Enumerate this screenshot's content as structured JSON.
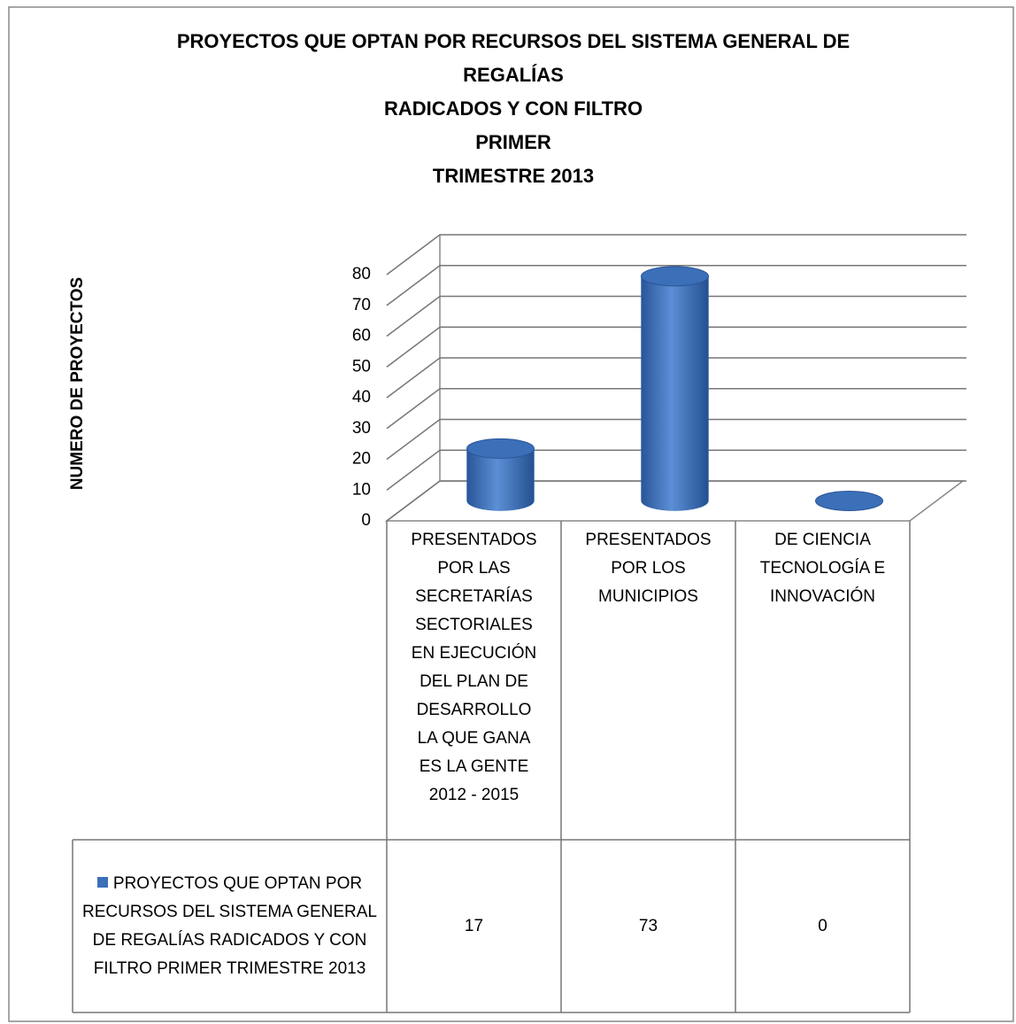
{
  "chart_data": {
    "type": "bar3d",
    "title": [
      "PROYECTOS QUE OPTAN POR RECURSOS DEL SISTEMA GENERAL DE",
      "REGALÍAS",
      "RADICADOS Y CON FILTRO",
      "PRIMER",
      "TRIMESTRE 2013"
    ],
    "ylabel": "NUMERO DE PROYECTOS",
    "categories": [
      "PRESENTADOS POR LAS SECRETARÍAS SECTORIALES EN EJECUCIÓN DEL PLAN DE DESARROLLO LA QUE GANA ES LA GENTE 2012 - 2015",
      "PRESENTADOS POR LOS MUNICIPIOS",
      "DE CIENCIA TECNOLOGÍA E INNOVACIÓN"
    ],
    "series": [
      {
        "name": "PROYECTOS QUE OPTAN POR RECURSOS DEL SISTEMA GENERAL DE REGALÍAS RADICADOS Y CON FILTRO PRIMER TRIMESTRE 2013",
        "color": "#3b6fb8",
        "values": [
          17,
          73,
          0
        ]
      }
    ],
    "ylim": [
      0,
      80
    ],
    "yticks": [
      0,
      10,
      20,
      30,
      40,
      50,
      60,
      70,
      80
    ],
    "grid": true,
    "data_table": true
  }
}
